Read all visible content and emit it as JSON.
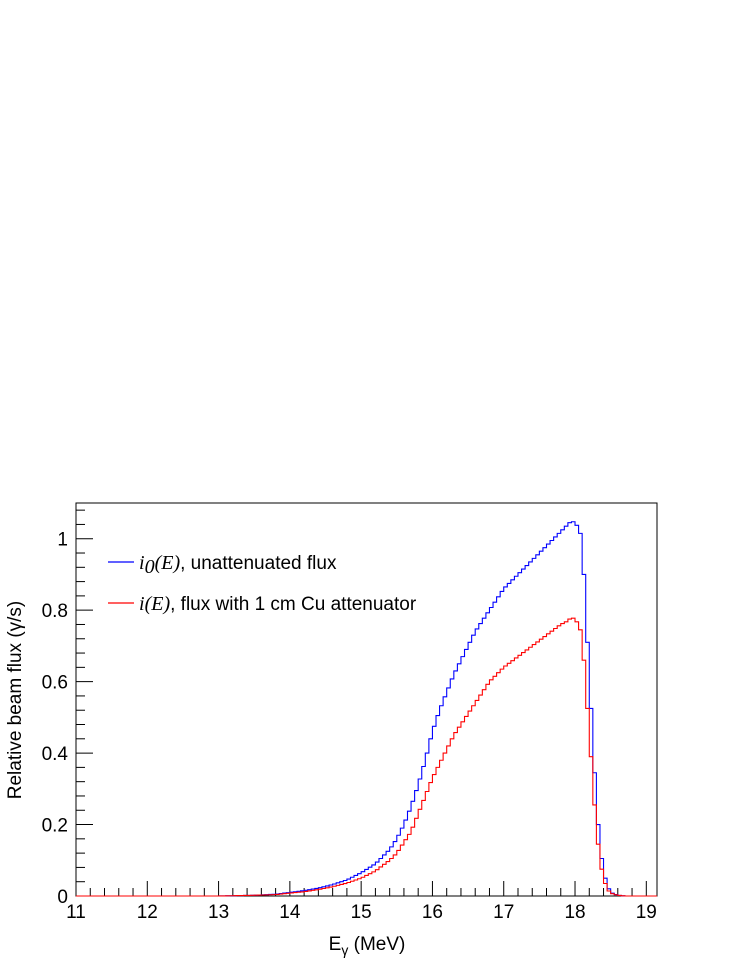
{
  "chart_data": {
    "type": "line",
    "step": true,
    "xlabel_main": "E",
    "xlabel_sub": "γ",
    "xlabel_rest": " (MeV)",
    "ylabel": "Relative beam flux (γ/s)",
    "xlim": [
      11,
      19.15
    ],
    "ylim": [
      0,
      1.1
    ],
    "x_ticks": [
      11,
      12,
      13,
      14,
      15,
      16,
      17,
      18,
      19
    ],
    "y_ticks": [
      0,
      0.2,
      0.4,
      0.6,
      0.8,
      1
    ],
    "y_tick_labels": [
      "0",
      "0.2",
      "0.4",
      "0.6",
      "0.8",
      "1"
    ],
    "legend_position": "top-left",
    "series": [
      {
        "name_math": "i",
        "name_math_sub": "0",
        "name_math_rest": "(E)",
        "name_text": ", unattenuated flux",
        "color": "#0000ff",
        "points": [
          [
            11.0,
            0
          ],
          [
            13.0,
            0
          ],
          [
            13.5,
            0.002
          ],
          [
            13.8,
            0.005
          ],
          [
            14.0,
            0.01
          ],
          [
            14.2,
            0.015
          ],
          [
            14.4,
            0.022
          ],
          [
            14.6,
            0.032
          ],
          [
            14.8,
            0.045
          ],
          [
            15.0,
            0.065
          ],
          [
            15.2,
            0.09
          ],
          [
            15.4,
            0.13
          ],
          [
            15.5,
            0.16
          ],
          [
            15.6,
            0.2
          ],
          [
            15.7,
            0.25
          ],
          [
            15.8,
            0.31
          ],
          [
            15.9,
            0.38
          ],
          [
            16.0,
            0.46
          ],
          [
            16.1,
            0.52
          ],
          [
            16.2,
            0.57
          ],
          [
            16.3,
            0.62
          ],
          [
            16.4,
            0.66
          ],
          [
            16.5,
            0.7
          ],
          [
            16.6,
            0.74
          ],
          [
            16.7,
            0.77
          ],
          [
            16.8,
            0.8
          ],
          [
            16.9,
            0.83
          ],
          [
            17.0,
            0.86
          ],
          [
            17.2,
            0.9
          ],
          [
            17.4,
            0.94
          ],
          [
            17.6,
            0.98
          ],
          [
            17.8,
            1.02
          ],
          [
            17.9,
            1.04
          ],
          [
            17.95,
            1.05
          ],
          [
            18.0,
            1.045
          ],
          [
            18.05,
            1.03
          ],
          [
            18.1,
            1.0
          ],
          [
            18.15,
            0.8
          ],
          [
            18.2,
            0.62
          ],
          [
            18.25,
            0.43
          ],
          [
            18.3,
            0.26
          ],
          [
            18.35,
            0.14
          ],
          [
            18.4,
            0.07
          ],
          [
            18.45,
            0.03
          ],
          [
            18.5,
            0.01
          ],
          [
            18.6,
            0.002
          ],
          [
            18.7,
            0
          ],
          [
            19.15,
            0
          ]
        ]
      },
      {
        "name_math": "i",
        "name_math_sub": "",
        "name_math_rest": "(E)",
        "name_text": ", flux with 1 cm Cu attenuator",
        "color": "#ff0000",
        "points": [
          [
            11.0,
            0
          ],
          [
            13.0,
            0
          ],
          [
            13.5,
            0.002
          ],
          [
            13.8,
            0.004
          ],
          [
            14.0,
            0.008
          ],
          [
            14.2,
            0.012
          ],
          [
            14.4,
            0.018
          ],
          [
            14.6,
            0.026
          ],
          [
            14.8,
            0.036
          ],
          [
            15.0,
            0.05
          ],
          [
            15.2,
            0.07
          ],
          [
            15.4,
            0.1
          ],
          [
            15.5,
            0.12
          ],
          [
            15.6,
            0.15
          ],
          [
            15.7,
            0.18
          ],
          [
            15.8,
            0.23
          ],
          [
            15.9,
            0.28
          ],
          [
            16.0,
            0.33
          ],
          [
            16.1,
            0.37
          ],
          [
            16.2,
            0.41
          ],
          [
            16.3,
            0.45
          ],
          [
            16.4,
            0.48
          ],
          [
            16.5,
            0.51
          ],
          [
            16.6,
            0.54
          ],
          [
            16.7,
            0.57
          ],
          [
            16.8,
            0.6
          ],
          [
            16.9,
            0.62
          ],
          [
            17.0,
            0.64
          ],
          [
            17.2,
            0.67
          ],
          [
            17.4,
            0.7
          ],
          [
            17.6,
            0.73
          ],
          [
            17.8,
            0.76
          ],
          [
            17.9,
            0.77
          ],
          [
            17.95,
            0.78
          ],
          [
            18.0,
            0.775
          ],
          [
            18.05,
            0.76
          ],
          [
            18.1,
            0.73
          ],
          [
            18.15,
            0.59
          ],
          [
            18.2,
            0.46
          ],
          [
            18.25,
            0.32
          ],
          [
            18.3,
            0.19
          ],
          [
            18.35,
            0.1
          ],
          [
            18.4,
            0.05
          ],
          [
            18.45,
            0.02
          ],
          [
            18.5,
            0.008
          ],
          [
            18.6,
            0.002
          ],
          [
            18.7,
            0
          ],
          [
            19.15,
            0
          ]
        ]
      }
    ]
  }
}
